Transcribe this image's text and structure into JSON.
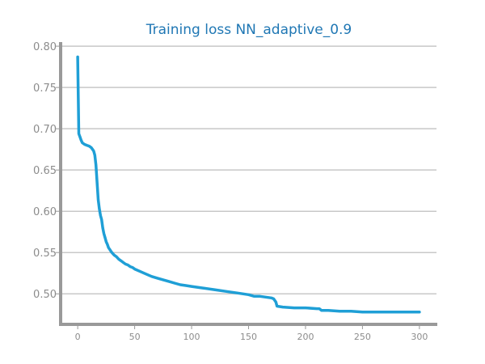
{
  "chart_data": {
    "type": "line",
    "title": "Training loss NN_adaptive_0.9",
    "xlabel": "",
    "ylabel": "",
    "xlim": [
      -15,
      315
    ],
    "ylim": [
      0.463,
      0.805
    ],
    "x_ticks": [
      0,
      50,
      100,
      150,
      200,
      250,
      300
    ],
    "x_tick_labels": [
      "0",
      "50",
      "100",
      "150",
      "200",
      "250",
      "300"
    ],
    "y_ticks": [
      0.5,
      0.55,
      0.6,
      0.65,
      0.7,
      0.75,
      0.8
    ],
    "y_tick_labels": [
      "0.50",
      "0.55",
      "0.60",
      "0.65",
      "0.70",
      "0.75",
      "0.80"
    ],
    "grid": true,
    "colors": {
      "series": "#1f9fd6",
      "title": "#1f77b4",
      "axis": "#999999",
      "grid": "#c8c8c8"
    },
    "series": [
      {
        "x": [
          0,
          1,
          2,
          3,
          4,
          5,
          6,
          8,
          10,
          12,
          13,
          14,
          15,
          16,
          17,
          18,
          19,
          20,
          21,
          22,
          23,
          24,
          25,
          26,
          27,
          28,
          29,
          30,
          32,
          34,
          36,
          38,
          40,
          42,
          44,
          46,
          48,
          50,
          55,
          60,
          65,
          70,
          75,
          80,
          85,
          90,
          95,
          100,
          110,
          120,
          130,
          140,
          150,
          155,
          160,
          165,
          170,
          172,
          174,
          175,
          180,
          190,
          200,
          210,
          212,
          213,
          214,
          220,
          230,
          240,
          250,
          260,
          270,
          280,
          290,
          300
        ],
        "y": [
          0.787,
          0.694,
          0.69,
          0.686,
          0.683,
          0.682,
          0.681,
          0.68,
          0.679,
          0.677,
          0.675,
          0.673,
          0.668,
          0.656,
          0.635,
          0.614,
          0.603,
          0.595,
          0.59,
          0.58,
          0.573,
          0.568,
          0.563,
          0.56,
          0.556,
          0.554,
          0.552,
          0.55,
          0.547,
          0.545,
          0.542,
          0.54,
          0.538,
          0.536,
          0.535,
          0.533,
          0.532,
          0.53,
          0.527,
          0.524,
          0.521,
          0.519,
          0.517,
          0.515,
          0.513,
          0.511,
          0.51,
          0.509,
          0.507,
          0.505,
          0.503,
          0.501,
          0.499,
          0.497,
          0.497,
          0.496,
          0.495,
          0.494,
          0.49,
          0.485,
          0.484,
          0.483,
          0.483,
          0.482,
          0.482,
          0.481,
          0.48,
          0.48,
          0.479,
          0.479,
          0.478,
          0.478,
          0.478,
          0.478,
          0.478,
          0.478
        ]
      }
    ]
  }
}
